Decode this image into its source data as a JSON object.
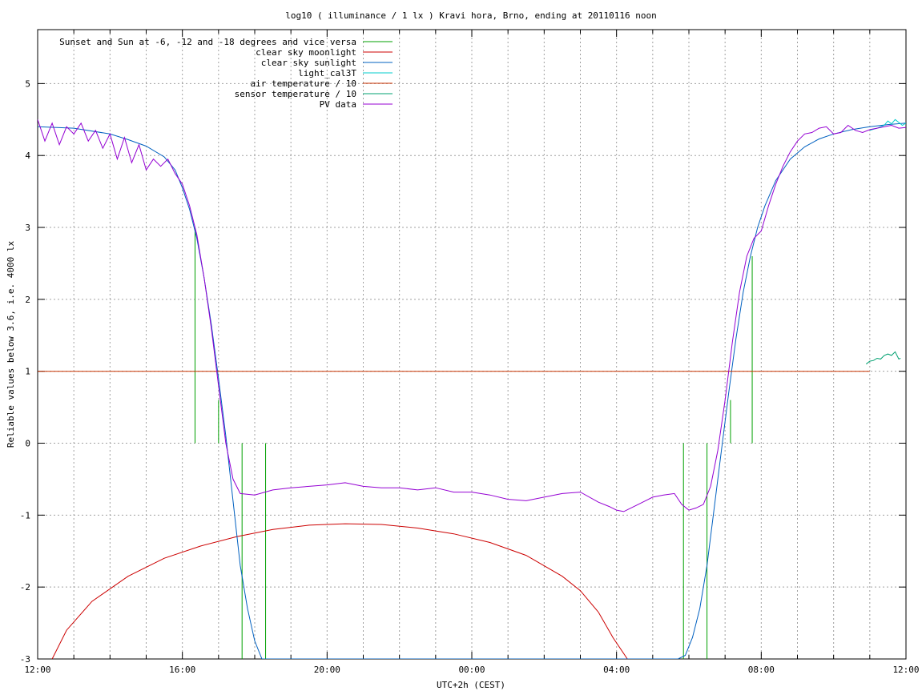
{
  "chart_data": {
    "type": "line",
    "title": "log10 ( illuminance / 1 lx ) Kravi hora, Brno, ending at 20110116 noon",
    "xlabel": "UTC+2h (CEST)",
    "ylabel": "Reliable values below 3.6, i.e. 4000 lx",
    "xlim": [
      12,
      36
    ],
    "ylim": [
      -3,
      5.75
    ],
    "grid": true,
    "legend_position": "top-left",
    "x_ticks": [
      {
        "x": 12,
        "label": "12:00"
      },
      {
        "x": 16,
        "label": "16:00"
      },
      {
        "x": 20,
        "label": "20:00"
      },
      {
        "x": 24,
        "label": "00:00"
      },
      {
        "x": 28,
        "label": "04:00"
      },
      {
        "x": 32,
        "label": "08:00"
      },
      {
        "x": 36,
        "label": "12:00"
      }
    ],
    "x_minor_step": 1,
    "y_ticks": [
      {
        "y": 5,
        "label": "5"
      },
      {
        "y": 4,
        "label": "4"
      },
      {
        "y": 3,
        "label": "3"
      },
      {
        "y": 2,
        "label": "2"
      },
      {
        "y": 1,
        "label": "1"
      },
      {
        "y": 0,
        "label": "0"
      },
      {
        "y": -1,
        "label": "-1"
      },
      {
        "y": -2,
        "label": "-2"
      },
      {
        "y": -3,
        "label": "-3"
      }
    ],
    "series": [
      {
        "name": "Sunset and Sun at -6, -12 and -18 degrees and vice versa",
        "color": "#00a000",
        "kind": "vlines",
        "segments": [
          {
            "x": 16.35,
            "y": [
              0,
              3.0
            ]
          },
          {
            "x": 17.0,
            "y": [
              0,
              0.6
            ]
          },
          {
            "x": 17.65,
            "y": [
              -3,
              0
            ]
          },
          {
            "x": 18.3,
            "y": [
              -3,
              0
            ]
          },
          {
            "x": 29.85,
            "y": [
              -3,
              0
            ]
          },
          {
            "x": 30.5,
            "y": [
              -3,
              0
            ]
          },
          {
            "x": 31.15,
            "y": [
              0,
              0.6
            ]
          },
          {
            "x": 31.75,
            "y": [
              0,
              2.6
            ]
          }
        ]
      },
      {
        "name": "clear sky moonlight",
        "color": "#cc0000",
        "kind": "line",
        "x": [
          12.4,
          12.8,
          13.5,
          14.5,
          15.5,
          16.5,
          17.5,
          18.5,
          19.5,
          20.5,
          21.5,
          22.5,
          23.5,
          24.5,
          25.5,
          26.5,
          27.0,
          27.5,
          27.9,
          28.3
        ],
        "y": [
          -3.0,
          -2.6,
          -2.2,
          -1.85,
          -1.6,
          -1.43,
          -1.3,
          -1.2,
          -1.14,
          -1.12,
          -1.13,
          -1.18,
          -1.26,
          -1.38,
          -1.56,
          -1.85,
          -2.05,
          -2.35,
          -2.7,
          -3.0
        ]
      },
      {
        "name": "clear sky sunlight",
        "color": "#0060c0",
        "kind": "line",
        "x": [
          12,
          13,
          14,
          14.5,
          15,
          15.5,
          15.8,
          16.0,
          16.2,
          16.4,
          16.6,
          16.8,
          17.0,
          17.2,
          17.4,
          17.6,
          17.8,
          18.0,
          18.2,
          18.25,
          29.5,
          29.7,
          29.9,
          30.1,
          30.3,
          30.5,
          30.7,
          30.9,
          31.1,
          31.3,
          31.5,
          31.7,
          31.9,
          32.1,
          32.4,
          32.8,
          33.2,
          33.6,
          34.0,
          34.5,
          35.0,
          35.5,
          36.0
        ],
        "y": [
          4.4,
          4.38,
          4.3,
          4.22,
          4.13,
          3.98,
          3.8,
          3.55,
          3.25,
          2.85,
          2.3,
          1.65,
          0.9,
          0.1,
          -0.8,
          -1.7,
          -2.3,
          -2.75,
          -3.0,
          -3.0,
          -3.0,
          -3.0,
          -2.95,
          -2.7,
          -2.3,
          -1.7,
          -0.9,
          -0.1,
          0.7,
          1.45,
          2.1,
          2.6,
          3.0,
          3.3,
          3.65,
          3.95,
          4.12,
          4.23,
          4.3,
          4.36,
          4.4,
          4.43,
          4.45
        ]
      },
      {
        "name": "light_cal3T",
        "color": "#00cccc",
        "kind": "line",
        "x": [
          35.0,
          35.2,
          35.4,
          35.5,
          35.6,
          35.7,
          35.8,
          35.9,
          36.0
        ],
        "y": [
          4.35,
          4.38,
          4.42,
          4.48,
          4.44,
          4.5,
          4.46,
          4.42,
          4.45
        ]
      },
      {
        "name": "air temperature / 10",
        "color": "#c83200",
        "kind": "line",
        "x": [
          12,
          35.0
        ],
        "y": [
          1.0,
          1.0
        ]
      },
      {
        "name": "sensor temperature / 10",
        "color": "#00a070",
        "kind": "line",
        "x": [
          34.9,
          35.0,
          35.1,
          35.2,
          35.3,
          35.4,
          35.5,
          35.6,
          35.7,
          35.8,
          35.85
        ],
        "y": [
          1.1,
          1.14,
          1.15,
          1.18,
          1.17,
          1.22,
          1.24,
          1.22,
          1.27,
          1.17,
          1.18
        ]
      },
      {
        "name": "PV data",
        "color": "#9400d3",
        "kind": "line",
        "x": [
          12.0,
          12.2,
          12.4,
          12.6,
          12.8,
          13.0,
          13.2,
          13.4,
          13.6,
          13.8,
          14.0,
          14.2,
          14.4,
          14.6,
          14.8,
          15.0,
          15.2,
          15.4,
          15.6,
          15.8,
          16.0,
          16.2,
          16.4,
          16.6,
          16.8,
          17.0,
          17.2,
          17.4,
          17.6,
          18.0,
          18.5,
          19.0,
          19.5,
          20.0,
          20.5,
          21.0,
          21.5,
          22.0,
          22.5,
          23.0,
          23.5,
          24.0,
          24.5,
          25.0,
          25.5,
          26.0,
          26.5,
          27.0,
          27.5,
          27.8,
          28.0,
          28.2,
          28.4,
          28.6,
          28.8,
          29.0,
          29.3,
          29.6,
          29.8,
          30.0,
          30.2,
          30.4,
          30.6,
          30.8,
          31.0,
          31.2,
          31.4,
          31.6,
          31.8,
          32.0,
          32.2,
          32.4,
          32.6,
          32.8,
          33.0,
          33.2,
          33.4,
          33.6,
          33.8,
          34.0,
          34.2,
          34.4,
          34.6,
          34.8,
          35.0,
          35.2,
          35.4,
          35.6,
          35.8,
          36.0
        ],
        "y": [
          4.5,
          4.2,
          4.45,
          4.15,
          4.4,
          4.3,
          4.45,
          4.2,
          4.35,
          4.1,
          4.3,
          3.95,
          4.25,
          3.9,
          4.15,
          3.8,
          3.95,
          3.85,
          3.95,
          3.75,
          3.6,
          3.3,
          2.9,
          2.3,
          1.6,
          0.8,
          0.0,
          -0.5,
          -0.7,
          -0.72,
          -0.65,
          -0.62,
          -0.6,
          -0.58,
          -0.55,
          -0.6,
          -0.62,
          -0.62,
          -0.65,
          -0.62,
          -0.68,
          -0.68,
          -0.72,
          -0.78,
          -0.8,
          -0.75,
          -0.7,
          -0.68,
          -0.82,
          -0.88,
          -0.93,
          -0.95,
          -0.9,
          -0.85,
          -0.8,
          -0.75,
          -0.72,
          -0.7,
          -0.85,
          -0.93,
          -0.9,
          -0.85,
          -0.6,
          -0.1,
          0.6,
          1.4,
          2.1,
          2.6,
          2.85,
          2.95,
          3.3,
          3.6,
          3.85,
          4.05,
          4.2,
          4.3,
          4.32,
          4.38,
          4.4,
          4.3,
          4.32,
          4.42,
          4.35,
          4.32,
          4.36,
          4.38,
          4.4,
          4.42,
          4.38,
          4.39
        ]
      }
    ]
  }
}
